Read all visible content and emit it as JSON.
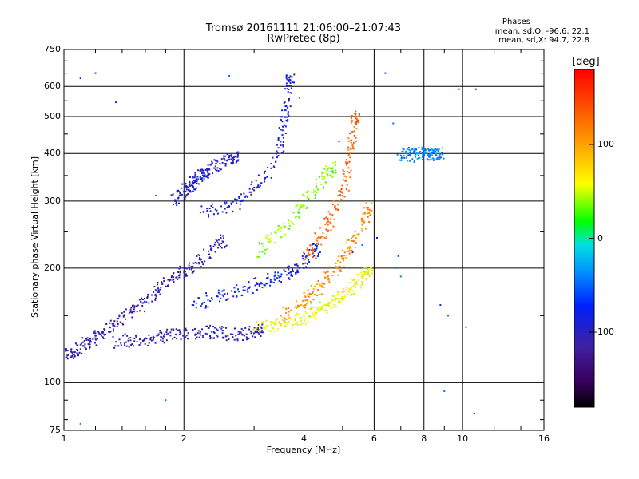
{
  "chart_data": {
    "type": "scatter",
    "title": "Tromsø 20161111 21:06:00–21:07:43",
    "subtitle": "RwPretec (8p)",
    "xlabel": "Frequency [MHz]",
    "ylabel": "Stationary phase Virtual Height [km]",
    "x_scale": "log",
    "y_scale": "log",
    "xlim": [
      1,
      16
    ],
    "ylim": [
      75,
      750
    ],
    "x_ticks": [
      1,
      2,
      4,
      6,
      8,
      10,
      16
    ],
    "x_tick_labels": [
      "1",
      "2",
      "4",
      "6",
      "8",
      "10",
      "16"
    ],
    "y_ticks": [
      75,
      100,
      200,
      300,
      400,
      500,
      600,
      750
    ],
    "y_tick_labels": [
      "75",
      "100",
      "200",
      "300",
      "400",
      "500",
      "600",
      "750"
    ],
    "grid": true,
    "stats": {
      "heading": "Phases",
      "line_o": "mean, sd,O: -96.6, 22.1",
      "line_x": "mean, sd,X:  94.7, 22.8"
    },
    "colorbar": {
      "unit": "[deg]",
      "range": [
        -180,
        180
      ],
      "ticks": [
        100,
        0,
        -100
      ],
      "tick_labels": [
        "100",
        "0",
        "-100"
      ]
    },
    "series": [
      {
        "trace": "o-mode-low-F1",
        "phase": -110,
        "points": [
          [
            1.02,
            118
          ],
          [
            1.05,
            120
          ],
          [
            1.08,
            122
          ],
          [
            1.12,
            125
          ],
          [
            1.16,
            128
          ],
          [
            1.2,
            131
          ],
          [
            1.25,
            135
          ],
          [
            1.3,
            140
          ],
          [
            1.36,
            145
          ],
          [
            1.42,
            150
          ],
          [
            1.5,
            156
          ],
          [
            1.58,
            162
          ],
          [
            1.66,
            170
          ],
          [
            1.75,
            178
          ],
          [
            1.85,
            186
          ],
          [
            1.95,
            192
          ],
          [
            2.0,
            195
          ],
          [
            2.1,
            200
          ],
          [
            2.2,
            210
          ],
          [
            2.35,
            222
          ],
          [
            2.5,
            235
          ]
        ]
      },
      {
        "trace": "o-mode-lower-edge",
        "phase": -105,
        "points": [
          [
            1.35,
            128
          ],
          [
            1.45,
            129
          ],
          [
            1.55,
            130
          ],
          [
            1.65,
            131
          ],
          [
            1.75,
            132
          ],
          [
            1.85,
            133
          ],
          [
            1.95,
            134
          ],
          [
            2.05,
            135
          ],
          [
            2.2,
            136
          ],
          [
            2.35,
            136
          ],
          [
            2.5,
            135
          ],
          [
            2.65,
            134
          ],
          [
            2.8,
            134
          ],
          [
            2.95,
            135
          ],
          [
            3.1,
            137
          ]
        ]
      },
      {
        "trace": "o-mode-F-layer",
        "phase": -95,
        "points": [
          [
            1.9,
            300
          ],
          [
            1.95,
            310
          ],
          [
            2.0,
            318
          ],
          [
            2.05,
            325
          ],
          [
            2.1,
            333
          ],
          [
            2.15,
            340
          ],
          [
            2.2,
            348
          ],
          [
            2.25,
            355
          ],
          [
            2.3,
            362
          ],
          [
            2.4,
            370
          ],
          [
            2.5,
            378
          ],
          [
            2.6,
            385
          ],
          [
            2.7,
            392
          ]
        ]
      },
      {
        "trace": "o-mode-upper",
        "phase": -90,
        "points": [
          [
            2.2,
            280
          ],
          [
            2.4,
            285
          ],
          [
            2.6,
            290
          ],
          [
            2.8,
            300
          ],
          [
            3.0,
            320
          ],
          [
            3.2,
            345
          ],
          [
            3.4,
            380
          ],
          [
            3.5,
            420
          ],
          [
            3.55,
            470
          ],
          [
            3.6,
            520
          ],
          [
            3.65,
            580
          ],
          [
            3.7,
            620
          ]
        ]
      },
      {
        "trace": "o-mode-mid",
        "phase": -80,
        "points": [
          [
            2.1,
            160
          ],
          [
            2.3,
            165
          ],
          [
            2.5,
            170
          ],
          [
            2.7,
            174
          ],
          [
            2.9,
            178
          ],
          [
            3.1,
            182
          ],
          [
            3.3,
            186
          ],
          [
            3.5,
            190
          ],
          [
            3.7,
            195
          ],
          [
            3.9,
            200
          ],
          [
            4.1,
            210
          ],
          [
            4.3,
            225
          ]
        ]
      },
      {
        "trace": "x-mode-low",
        "phase": 60,
        "points": [
          [
            3.0,
            138
          ],
          [
            3.2,
            140
          ],
          [
            3.4,
            142
          ],
          [
            3.6,
            144
          ],
          [
            3.8,
            146
          ],
          [
            4.0,
            149
          ],
          [
            4.2,
            152
          ],
          [
            4.4,
            156
          ],
          [
            4.6,
            160
          ],
          [
            4.8,
            165
          ],
          [
            5.0,
            170
          ],
          [
            5.2,
            176
          ],
          [
            5.4,
            182
          ],
          [
            5.6,
            188
          ],
          [
            5.8,
            195
          ]
        ]
      },
      {
        "trace": "x-mode-mid",
        "phase": 110,
        "points": [
          [
            3.5,
            150
          ],
          [
            3.8,
            158
          ],
          [
            4.0,
            165
          ],
          [
            4.2,
            172
          ],
          [
            4.4,
            180
          ],
          [
            4.6,
            190
          ],
          [
            4.8,
            200
          ],
          [
            5.0,
            212
          ],
          [
            5.2,
            225
          ],
          [
            5.4,
            240
          ],
          [
            5.6,
            260
          ],
          [
            5.8,
            285
          ]
        ]
      },
      {
        "trace": "x-mode-upper",
        "phase": 130,
        "points": [
          [
            4.0,
            210
          ],
          [
            4.2,
            225
          ],
          [
            4.4,
            240
          ],
          [
            4.6,
            260
          ],
          [
            4.8,
            285
          ],
          [
            5.0,
            310
          ],
          [
            5.1,
            340
          ],
          [
            5.2,
            380
          ],
          [
            5.3,
            420
          ],
          [
            5.35,
            470
          ],
          [
            5.4,
            500
          ]
        ]
      },
      {
        "trace": "x-mode-secondary",
        "phase": 40,
        "points": [
          [
            3.1,
            220
          ],
          [
            3.3,
            235
          ],
          [
            3.5,
            250
          ],
          [
            3.7,
            265
          ],
          [
            3.9,
            285
          ],
          [
            4.1,
            305
          ],
          [
            4.3,
            325
          ],
          [
            4.5,
            345
          ],
          [
            4.7,
            365
          ]
        ]
      },
      {
        "trace": "sporadic-high",
        "phase": -40,
        "points": [
          [
            7.0,
            395
          ],
          [
            7.2,
            400
          ],
          [
            7.4,
            398
          ],
          [
            7.6,
            395
          ],
          [
            7.8,
            402
          ],
          [
            8.0,
            398
          ],
          [
            8.2,
            396
          ],
          [
            8.4,
            400
          ],
          [
            8.6,
            395
          ],
          [
            8.8,
            398
          ]
        ]
      },
      {
        "trace": "scattered",
        "phase": -60,
        "points": [
          [
            1.2,
            650
          ],
          [
            1.1,
            630
          ],
          [
            1.35,
            545
          ],
          [
            1.7,
            310
          ],
          [
            2.6,
            640
          ],
          [
            3.9,
            560
          ],
          [
            4.9,
            430
          ],
          [
            6.4,
            650
          ],
          [
            6.7,
            480
          ],
          [
            6.8,
            200
          ],
          [
            7.0,
            190
          ],
          [
            8.8,
            160
          ],
          [
            9.0,
            95
          ],
          [
            9.2,
            150
          ],
          [
            9.8,
            590
          ],
          [
            10.2,
            140
          ],
          [
            10.8,
            590
          ],
          [
            10.7,
            83
          ],
          [
            1.8,
            90
          ],
          [
            1.1,
            78
          ],
          [
            5.3,
            220
          ],
          [
            5.6,
            230
          ],
          [
            6.1,
            240
          ],
          [
            6.9,
            215
          ]
        ]
      }
    ]
  }
}
